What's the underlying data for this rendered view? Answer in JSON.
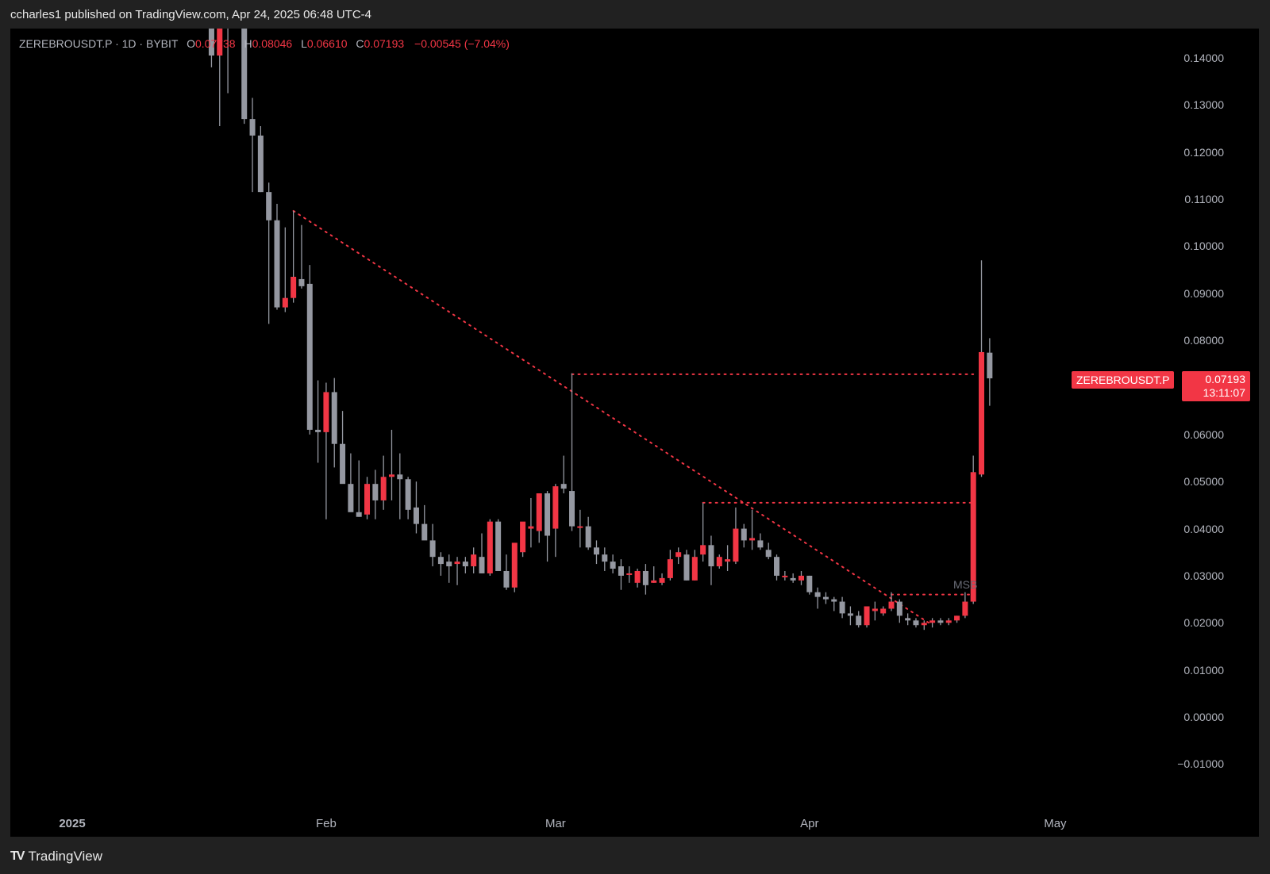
{
  "header": {
    "publish_text": "ccharles1 published on TradingView.com, Apr 24, 2025 06:48 UTC-4"
  },
  "legend": {
    "symbol": "ZEREBROUSDT.P · 1D · BYBIT",
    "open_label": "O",
    "open": "0.07738",
    "high_label": "H",
    "high": "0.08046",
    "low_label": "L",
    "low": "0.06610",
    "close_label": "C",
    "close": "0.07193",
    "change": "−0.00545 (−7.04%)"
  },
  "price_tag": {
    "symbol": "ZEREBROUSDT.P",
    "price": "0.07193",
    "countdown": "13:11:07"
  },
  "annotation": {
    "msb_label": "MSB"
  },
  "footer": {
    "brand": "TradingView",
    "logo": "TV"
  },
  "colors": {
    "up": "#f23645",
    "down": "#9598a1",
    "line": "#f23645",
    "bg": "#000000",
    "frame": "#212121"
  },
  "chart_data": {
    "type": "candlestick",
    "title": "ZEREBROUSDT.P · 1D · BYBIT",
    "xlabel": "",
    "ylabel": "",
    "ylim": [
      -0.015,
      0.145
    ],
    "y_ticks": [
      "0.14000",
      "0.13000",
      "0.12000",
      "0.11000",
      "0.10000",
      "0.09000",
      "0.08000",
      "0.07000",
      "0.06000",
      "0.05000",
      "0.04000",
      "0.03000",
      "0.02000",
      "0.01000",
      "0.00000",
      "−0.01000"
    ],
    "x_ticks": [
      {
        "label": "2025",
        "day": 0
      },
      {
        "label": "Feb",
        "day": 31
      },
      {
        "label": "Mar",
        "day": 59
      },
      {
        "label": "Apr",
        "day": 90
      },
      {
        "label": "May",
        "day": 120
      }
    ],
    "grid": false,
    "candles": [
      {
        "d": 17,
        "o": 0.152,
        "h": 0.16,
        "l": 0.138,
        "c": 0.1405
      },
      {
        "d": 18,
        "o": 0.1405,
        "h": 0.16,
        "l": 0.1255,
        "c": 0.152
      },
      {
        "d": 19,
        "o": 0.152,
        "h": 0.16,
        "l": 0.1325,
        "c": 0.15
      },
      {
        "d": 21,
        "o": 0.158,
        "h": 0.16,
        "l": 0.126,
        "c": 0.127
      },
      {
        "d": 22,
        "o": 0.127,
        "h": 0.1315,
        "l": 0.1115,
        "c": 0.1235
      },
      {
        "d": 23,
        "o": 0.1235,
        "h": 0.1255,
        "l": 0.1115,
        "c": 0.1115
      },
      {
        "d": 24,
        "o": 0.1115,
        "h": 0.1135,
        "l": 0.0835,
        "c": 0.1055
      },
      {
        "d": 25,
        "o": 0.1055,
        "h": 0.109,
        "l": 0.0865,
        "c": 0.087
      },
      {
        "d": 26,
        "o": 0.087,
        "h": 0.104,
        "l": 0.086,
        "c": 0.089
      },
      {
        "d": 27,
        "o": 0.089,
        "h": 0.1075,
        "l": 0.088,
        "c": 0.0935
      },
      {
        "d": 28,
        "o": 0.093,
        "h": 0.1045,
        "l": 0.091,
        "c": 0.0915
      },
      {
        "d": 29,
        "o": 0.092,
        "h": 0.096,
        "l": 0.06,
        "c": 0.061
      },
      {
        "d": 30,
        "o": 0.061,
        "h": 0.0715,
        "l": 0.054,
        "c": 0.0605
      },
      {
        "d": 31,
        "o": 0.0605,
        "h": 0.071,
        "l": 0.042,
        "c": 0.069
      },
      {
        "d": 32,
        "o": 0.069,
        "h": 0.072,
        "l": 0.053,
        "c": 0.058
      },
      {
        "d": 33,
        "o": 0.058,
        "h": 0.065,
        "l": 0.0525,
        "c": 0.0495
      },
      {
        "d": 34,
        "o": 0.0495,
        "h": 0.056,
        "l": 0.049,
        "c": 0.0435
      },
      {
        "d": 35,
        "o": 0.0435,
        "h": 0.0545,
        "l": 0.0425,
        "c": 0.0425
      },
      {
        "d": 36,
        "o": 0.043,
        "h": 0.051,
        "l": 0.042,
        "c": 0.0495
      },
      {
        "d": 37,
        "o": 0.0495,
        "h": 0.0525,
        "l": 0.042,
        "c": 0.046
      },
      {
        "d": 38,
        "o": 0.046,
        "h": 0.0555,
        "l": 0.044,
        "c": 0.051
      },
      {
        "d": 39,
        "o": 0.051,
        "h": 0.061,
        "l": 0.046,
        "c": 0.0515
      },
      {
        "d": 40,
        "o": 0.0515,
        "h": 0.056,
        "l": 0.042,
        "c": 0.0505
      },
      {
        "d": 41,
        "o": 0.0505,
        "h": 0.051,
        "l": 0.042,
        "c": 0.044
      },
      {
        "d": 42,
        "o": 0.0445,
        "h": 0.05,
        "l": 0.039,
        "c": 0.041
      },
      {
        "d": 43,
        "o": 0.041,
        "h": 0.045,
        "l": 0.038,
        "c": 0.0375
      },
      {
        "d": 44,
        "o": 0.0375,
        "h": 0.041,
        "l": 0.032,
        "c": 0.034
      },
      {
        "d": 45,
        "o": 0.034,
        "h": 0.035,
        "l": 0.03,
        "c": 0.0325
      },
      {
        "d": 46,
        "o": 0.033,
        "h": 0.0345,
        "l": 0.0285,
        "c": 0.032
      },
      {
        "d": 47,
        "o": 0.0325,
        "h": 0.034,
        "l": 0.028,
        "c": 0.033
      },
      {
        "d": 48,
        "o": 0.033,
        "h": 0.034,
        "l": 0.0305,
        "c": 0.032
      },
      {
        "d": 49,
        "o": 0.032,
        "h": 0.036,
        "l": 0.0305,
        "c": 0.0345
      },
      {
        "d": 50,
        "o": 0.034,
        "h": 0.039,
        "l": 0.0305,
        "c": 0.0305
      },
      {
        "d": 51,
        "o": 0.0305,
        "h": 0.042,
        "l": 0.03,
        "c": 0.0415
      },
      {
        "d": 52,
        "o": 0.0415,
        "h": 0.042,
        "l": 0.035,
        "c": 0.031
      },
      {
        "d": 53,
        "o": 0.031,
        "h": 0.0345,
        "l": 0.027,
        "c": 0.0275
      },
      {
        "d": 54,
        "o": 0.0275,
        "h": 0.0345,
        "l": 0.0265,
        "c": 0.037
      },
      {
        "d": 55,
        "o": 0.035,
        "h": 0.041,
        "l": 0.034,
        "c": 0.0415
      },
      {
        "d": 56,
        "o": 0.04,
        "h": 0.0465,
        "l": 0.036,
        "c": 0.0405
      },
      {
        "d": 57,
        "o": 0.0395,
        "h": 0.0475,
        "l": 0.037,
        "c": 0.0475
      },
      {
        "d": 58,
        "o": 0.0475,
        "h": 0.048,
        "l": 0.033,
        "c": 0.0385
      },
      {
        "d": 59,
        "o": 0.04,
        "h": 0.0495,
        "l": 0.034,
        "c": 0.049
      },
      {
        "d": 60,
        "o": 0.0495,
        "h": 0.0555,
        "l": 0.0475,
        "c": 0.0485
      },
      {
        "d": 61,
        "o": 0.048,
        "h": 0.073,
        "l": 0.0395,
        "c": 0.0405
      },
      {
        "d": 62,
        "o": 0.0405,
        "h": 0.044,
        "l": 0.036,
        "c": 0.0405
      },
      {
        "d": 63,
        "o": 0.0405,
        "h": 0.0425,
        "l": 0.0355,
        "c": 0.036
      },
      {
        "d": 64,
        "o": 0.036,
        "h": 0.0375,
        "l": 0.0325,
        "c": 0.0345
      },
      {
        "d": 65,
        "o": 0.0345,
        "h": 0.036,
        "l": 0.031,
        "c": 0.033
      },
      {
        "d": 66,
        "o": 0.033,
        "h": 0.0345,
        "l": 0.0305,
        "c": 0.0315
      },
      {
        "d": 67,
        "o": 0.032,
        "h": 0.0335,
        "l": 0.027,
        "c": 0.03
      },
      {
        "d": 68,
        "o": 0.0305,
        "h": 0.032,
        "l": 0.0285,
        "c": 0.0305
      },
      {
        "d": 69,
        "o": 0.0285,
        "h": 0.0315,
        "l": 0.0275,
        "c": 0.031
      },
      {
        "d": 70,
        "o": 0.031,
        "h": 0.0325,
        "l": 0.026,
        "c": 0.028
      },
      {
        "d": 71,
        "o": 0.0285,
        "h": 0.032,
        "l": 0.0285,
        "c": 0.029
      },
      {
        "d": 72,
        "o": 0.0285,
        "h": 0.0305,
        "l": 0.028,
        "c": 0.0295
      },
      {
        "d": 73,
        "o": 0.0295,
        "h": 0.0355,
        "l": 0.029,
        "c": 0.0335
      },
      {
        "d": 74,
        "o": 0.034,
        "h": 0.036,
        "l": 0.0325,
        "c": 0.035
      },
      {
        "d": 75,
        "o": 0.0345,
        "h": 0.0355,
        "l": 0.029,
        "c": 0.029
      },
      {
        "d": 76,
        "o": 0.029,
        "h": 0.0355,
        "l": 0.029,
        "c": 0.034
      },
      {
        "d": 77,
        "o": 0.0345,
        "h": 0.0455,
        "l": 0.033,
        "c": 0.0365
      },
      {
        "d": 78,
        "o": 0.0365,
        "h": 0.0385,
        "l": 0.028,
        "c": 0.032
      },
      {
        "d": 79,
        "o": 0.032,
        "h": 0.0345,
        "l": 0.0315,
        "c": 0.034
      },
      {
        "d": 80,
        "o": 0.033,
        "h": 0.0365,
        "l": 0.031,
        "c": 0.0335
      },
      {
        "d": 81,
        "o": 0.033,
        "h": 0.0445,
        "l": 0.0325,
        "c": 0.04
      },
      {
        "d": 82,
        "o": 0.04,
        "h": 0.041,
        "l": 0.036,
        "c": 0.0375
      },
      {
        "d": 83,
        "o": 0.0375,
        "h": 0.044,
        "l": 0.0355,
        "c": 0.038
      },
      {
        "d": 84,
        "o": 0.0375,
        "h": 0.039,
        "l": 0.0355,
        "c": 0.036
      },
      {
        "d": 85,
        "o": 0.0355,
        "h": 0.037,
        "l": 0.0335,
        "c": 0.034
      },
      {
        "d": 86,
        "o": 0.034,
        "h": 0.0345,
        "l": 0.029,
        "c": 0.03
      },
      {
        "d": 87,
        "o": 0.03,
        "h": 0.031,
        "l": 0.029,
        "c": 0.03
      },
      {
        "d": 88,
        "o": 0.0295,
        "h": 0.0305,
        "l": 0.0285,
        "c": 0.029
      },
      {
        "d": 89,
        "o": 0.029,
        "h": 0.031,
        "l": 0.028,
        "c": 0.03
      },
      {
        "d": 90,
        "o": 0.03,
        "h": 0.03,
        "l": 0.026,
        "c": 0.0265
      },
      {
        "d": 91,
        "o": 0.0265,
        "h": 0.0275,
        "l": 0.023,
        "c": 0.0255
      },
      {
        "d": 92,
        "o": 0.0255,
        "h": 0.0265,
        "l": 0.024,
        "c": 0.025
      },
      {
        "d": 93,
        "o": 0.025,
        "h": 0.0255,
        "l": 0.0225,
        "c": 0.0245
      },
      {
        "d": 94,
        "o": 0.0245,
        "h": 0.0255,
        "l": 0.021,
        "c": 0.022
      },
      {
        "d": 95,
        "o": 0.022,
        "h": 0.0235,
        "l": 0.0195,
        "c": 0.0215
      },
      {
        "d": 96,
        "o": 0.0215,
        "h": 0.0225,
        "l": 0.019,
        "c": 0.0195
      },
      {
        "d": 97,
        "o": 0.0195,
        "h": 0.0235,
        "l": 0.019,
        "c": 0.0235
      },
      {
        "d": 98,
        "o": 0.0225,
        "h": 0.0245,
        "l": 0.0205,
        "c": 0.023
      },
      {
        "d": 99,
        "o": 0.022,
        "h": 0.0235,
        "l": 0.0215,
        "c": 0.023
      },
      {
        "d": 100,
        "o": 0.023,
        "h": 0.0265,
        "l": 0.0225,
        "c": 0.0245
      },
      {
        "d": 101,
        "o": 0.0245,
        "h": 0.025,
        "l": 0.02,
        "c": 0.0215
      },
      {
        "d": 102,
        "o": 0.021,
        "h": 0.022,
        "l": 0.0195,
        "c": 0.0205
      },
      {
        "d": 103,
        "o": 0.0205,
        "h": 0.021,
        "l": 0.019,
        "c": 0.0195
      },
      {
        "d": 104,
        "o": 0.0195,
        "h": 0.0205,
        "l": 0.0185,
        "c": 0.02
      },
      {
        "d": 105,
        "o": 0.02,
        "h": 0.021,
        "l": 0.019,
        "c": 0.0205
      },
      {
        "d": 106,
        "o": 0.0205,
        "h": 0.021,
        "l": 0.0195,
        "c": 0.02
      },
      {
        "d": 107,
        "o": 0.02,
        "h": 0.021,
        "l": 0.0195,
        "c": 0.0205
      },
      {
        "d": 108,
        "o": 0.0205,
        "h": 0.0215,
        "l": 0.02,
        "c": 0.0215
      },
      {
        "d": 109,
        "o": 0.0215,
        "h": 0.0265,
        "l": 0.021,
        "c": 0.0245
      },
      {
        "d": 110,
        "o": 0.0245,
        "h": 0.0555,
        "l": 0.024,
        "c": 0.052
      },
      {
        "d": 111,
        "o": 0.0515,
        "h": 0.097,
        "l": 0.051,
        "c": 0.0775
      },
      {
        "d": 112,
        "o": 0.07738,
        "h": 0.08046,
        "l": 0.0661,
        "c": 0.07193
      }
    ],
    "drawings": [
      {
        "type": "trendline",
        "style": "dotted",
        "from": {
          "d": 27,
          "p": 0.1075
        },
        "to": {
          "d": 105,
          "p": 0.0195
        }
      },
      {
        "type": "hline",
        "style": "dotted",
        "price": 0.0728,
        "from_d": 61,
        "to_d": 110
      },
      {
        "type": "hline",
        "style": "dotted",
        "price": 0.0455,
        "from_d": 77,
        "to_d": 110
      },
      {
        "type": "hline",
        "style": "dotted",
        "price": 0.026,
        "from_d": 100,
        "to_d": 110,
        "label": "MSB"
      }
    ],
    "last_price": 0.07193
  }
}
